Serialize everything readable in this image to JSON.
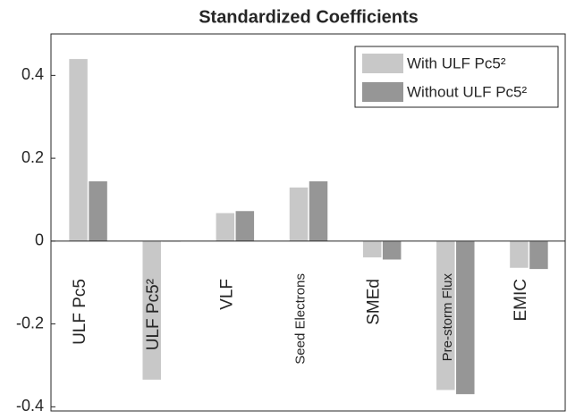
{
  "chart_data": {
    "type": "bar",
    "title": "Standardized Coefficients",
    "categories": [
      "ULF Pc5",
      "ULF Pc5²",
      "VLF",
      "Seed Electrons",
      "SMEd",
      "Pre-storm Flux",
      "EMIC"
    ],
    "series": [
      {
        "name": "With ULF Pc5²",
        "color": "#c8c8c8",
        "values": [
          0.44,
          -0.335,
          0.068,
          0.13,
          -0.04,
          -0.36,
          -0.065
        ]
      },
      {
        "name": "Without ULF Pc5²",
        "color": "#969696",
        "values": [
          0.145,
          -0.002,
          0.073,
          0.145,
          -0.045,
          -0.37,
          -0.068
        ]
      }
    ],
    "ylim": [
      -0.41,
      0.5
    ],
    "yticks": [
      {
        "value": -0.4,
        "label": "-0.4"
      },
      {
        "value": -0.2,
        "label": "-0.2"
      },
      0,
      0.2,
      0.4
    ],
    "legend": "upper right"
  }
}
